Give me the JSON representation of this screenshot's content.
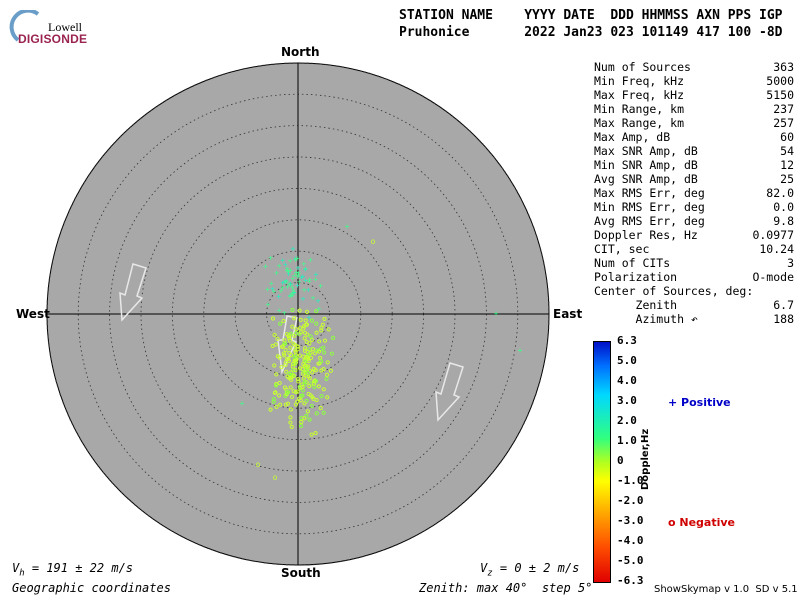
{
  "logo": {
    "brand": "Lowell",
    "product": "DIGISONDE"
  },
  "header": {
    "labels": "STATION NAME    YYYY DATE  DDD HHMMSS AXN PPS IGP",
    "values": "Pruhonice       2022 Jan23 023 101149 417 100 -8D"
  },
  "compass": {
    "north": "North",
    "south": "South",
    "east": "East",
    "west": "West"
  },
  "stats": [
    {
      "label": "Num of Sources",
      "value": "363"
    },
    {
      "label": "Min Freq, kHz",
      "value": "5000"
    },
    {
      "label": "Max Freq, kHz",
      "value": "5150"
    },
    {
      "label": "Min Range, km",
      "value": "237"
    },
    {
      "label": "Max Range, km",
      "value": "257"
    },
    {
      "label": "Max Amp, dB",
      "value": "60"
    },
    {
      "label": "Max SNR Amp, dB",
      "value": "54"
    },
    {
      "label": "Min SNR Amp, dB",
      "value": "12"
    },
    {
      "label": "Avg SNR Amp, dB",
      "value": "25"
    },
    {
      "label": "Max RMS Err, deg",
      "value": "82.0"
    },
    {
      "label": "Min RMS Err, deg",
      "value": "0.0"
    },
    {
      "label": "Avg RMS Err, deg",
      "value": "9.8"
    },
    {
      "label": "Doppler Res, Hz",
      "value": "0.0977"
    },
    {
      "label": "CIT, sec",
      "value": "10.24"
    },
    {
      "label": "Num of CITs",
      "value": "3"
    },
    {
      "label": "Polarization",
      "value": "O-mode"
    },
    {
      "label": "Center of Sources, deg:",
      "value": ""
    },
    {
      "label": "      Zenith",
      "value": "6.7"
    },
    {
      "label": "      Azimuth ↶",
      "value": "188"
    }
  ],
  "colorbar": {
    "title": "Doppler,Hz",
    "ticks": [
      "6.3",
      "5.0",
      "4.0",
      "3.0",
      "2.0",
      "1.0",
      "0",
      "-1.0",
      "-2.0",
      "-3.0",
      "-4.0",
      "-5.0",
      "-6.3"
    ]
  },
  "legend": {
    "positive": "+ Positive",
    "negative": "o Negative"
  },
  "footer": {
    "vh": "V",
    "vh_sub": "h",
    "vh_value": " = 191 ± 22 m/s",
    "vz": "V",
    "vz_sub": "z",
    "vz_value": " = 0 ± 2 m/s",
    "coords": "Geographic coordinates",
    "zenith": "Zenith: max 40°  step 5°",
    "version": "ShowSkymap v 1.0  SD v 5.1"
  },
  "colors": {
    "disk": "#a8a8a8",
    "positive": "#0000c8",
    "negative": "#d00000",
    "logo": "#9a2350"
  }
}
